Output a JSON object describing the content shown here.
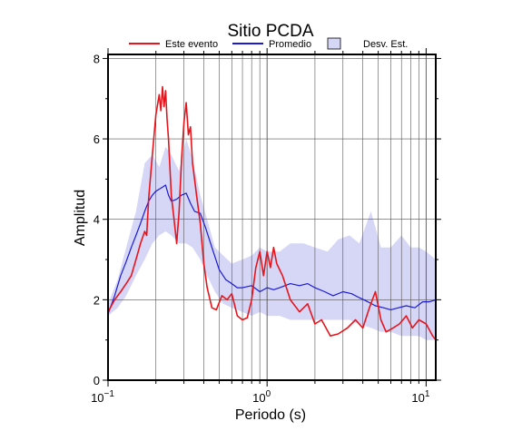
{
  "chart_data": {
    "type": "line",
    "title": "Sitio PCDA",
    "xlabel": "Periodo (s)",
    "ylabel": "Amplitud",
    "xscale": "log",
    "xlim": [
      0.1,
      11.5
    ],
    "ylim": [
      0,
      8.1
    ],
    "x_ticks": [
      {
        "base": "10",
        "exp": "−1"
      },
      {
        "base": "10",
        "exp": "0"
      },
      {
        "base": "10",
        "exp": "1"
      }
    ],
    "y_ticks": [
      "0",
      "2",
      "4",
      "6",
      "8"
    ],
    "grid": true,
    "legend_position": "top",
    "legend": [
      {
        "label": "Este evento",
        "kind": "line",
        "color": "#e8141c"
      },
      {
        "label": "Promedio",
        "kind": "line",
        "color": "#1a1ad6"
      },
      {
        "label": "Desv. Est.",
        "kind": "box",
        "color": "#d6d6f7"
      }
    ],
    "band": {
      "name": "Desv. Est.",
      "x": [
        0.1,
        0.115,
        0.13,
        0.15,
        0.17,
        0.19,
        0.21,
        0.23,
        0.25,
        0.28,
        0.31,
        0.34,
        0.38,
        0.42,
        0.47,
        0.53,
        0.6,
        0.7,
        0.8,
        0.9,
        1.0,
        1.2,
        1.4,
        1.7,
        2.0,
        2.4,
        2.8,
        3.3,
        3.8,
        4.5,
        5.2,
        6.0,
        7.0,
        8.0,
        9.0,
        10.0,
        11.5
      ],
      "lower": [
        1.6,
        1.8,
        2.1,
        2.6,
        3.0,
        3.4,
        3.6,
        3.7,
        3.6,
        3.4,
        3.4,
        3.3,
        3.0,
        2.6,
        2.2,
        1.9,
        1.8,
        1.7,
        1.6,
        1.7,
        1.6,
        1.6,
        1.5,
        1.5,
        1.5,
        1.5,
        1.5,
        1.5,
        1.4,
        1.3,
        1.2,
        1.2,
        1.1,
        1.1,
        1.1,
        1.0,
        1.0
      ],
      "upper": [
        1.9,
        2.5,
        3.3,
        4.2,
        5.4,
        5.6,
        5.3,
        5.8,
        5.6,
        5.2,
        6.0,
        5.5,
        4.6,
        4.0,
        3.3,
        3.1,
        2.9,
        3.0,
        3.1,
        3.3,
        3.2,
        3.2,
        3.4,
        3.4,
        3.3,
        3.2,
        3.5,
        3.6,
        3.4,
        4.2,
        3.3,
        3.3,
        3.6,
        3.3,
        3.3,
        3.2,
        3.0
      ]
    },
    "series": [
      {
        "name": "Promedio",
        "color": "#1a1ad6",
        "x": [
          0.1,
          0.11,
          0.12,
          0.13,
          0.14,
          0.15,
          0.16,
          0.17,
          0.18,
          0.19,
          0.2,
          0.21,
          0.22,
          0.23,
          0.24,
          0.25,
          0.27,
          0.29,
          0.31,
          0.33,
          0.35,
          0.38,
          0.41,
          0.45,
          0.5,
          0.55,
          0.6,
          0.65,
          0.7,
          0.8,
          0.9,
          1.0,
          1.1,
          1.2,
          1.4,
          1.6,
          1.8,
          2.0,
          2.3,
          2.6,
          3.0,
          3.4,
          3.8,
          4.3,
          4.8,
          5.4,
          6.0,
          6.7,
          7.5,
          8.5,
          9.5,
          10.5,
          11.5
        ],
        "y": [
          1.65,
          2.1,
          2.6,
          2.95,
          3.3,
          3.6,
          3.9,
          4.2,
          4.45,
          4.6,
          4.7,
          4.75,
          4.8,
          4.85,
          4.6,
          4.45,
          4.5,
          4.6,
          4.65,
          4.4,
          4.2,
          4.15,
          3.8,
          3.3,
          2.75,
          2.5,
          2.4,
          2.3,
          2.3,
          2.35,
          2.2,
          2.3,
          2.25,
          2.3,
          2.4,
          2.35,
          2.4,
          2.3,
          2.2,
          2.1,
          2.2,
          2.15,
          2.05,
          1.95,
          1.85,
          1.8,
          1.75,
          1.8,
          1.85,
          1.8,
          1.95,
          1.95,
          2.0
        ]
      },
      {
        "name": "Este evento",
        "color": "#e8141c",
        "x": [
          0.1,
          0.11,
          0.12,
          0.13,
          0.14,
          0.15,
          0.16,
          0.17,
          0.175,
          0.18,
          0.19,
          0.2,
          0.21,
          0.215,
          0.22,
          0.225,
          0.23,
          0.235,
          0.24,
          0.25,
          0.26,
          0.27,
          0.28,
          0.29,
          0.3,
          0.31,
          0.32,
          0.33,
          0.34,
          0.36,
          0.38,
          0.4,
          0.42,
          0.45,
          0.48,
          0.52,
          0.56,
          0.6,
          0.65,
          0.7,
          0.75,
          0.8,
          0.85,
          0.9,
          0.95,
          1.0,
          1.05,
          1.1,
          1.15,
          1.25,
          1.4,
          1.6,
          1.8,
          2.0,
          2.2,
          2.5,
          2.8,
          3.2,
          3.6,
          4.0,
          4.4,
          4.8,
          5.2,
          5.6,
          6.2,
          6.8,
          7.5,
          8.2,
          9.0,
          10.0,
          11.0,
          11.5
        ],
        "y": [
          1.7,
          2.0,
          2.2,
          2.4,
          2.6,
          3.0,
          3.4,
          3.7,
          3.6,
          4.5,
          5.6,
          6.6,
          7.1,
          6.7,
          7.3,
          6.8,
          7.2,
          6.5,
          6.0,
          4.6,
          4.0,
          3.4,
          4.2,
          5.5,
          6.4,
          6.9,
          6.1,
          6.3,
          5.4,
          4.6,
          3.9,
          2.9,
          2.3,
          1.8,
          1.75,
          2.1,
          2.0,
          2.15,
          1.6,
          1.5,
          1.55,
          2.0,
          2.8,
          3.2,
          2.6,
          3.2,
          2.8,
          3.3,
          2.9,
          2.6,
          2.0,
          1.7,
          1.9,
          1.4,
          1.5,
          1.1,
          1.15,
          1.3,
          1.5,
          1.3,
          1.8,
          2.2,
          1.5,
          1.2,
          1.3,
          1.4,
          1.6,
          1.3,
          1.5,
          1.4,
          1.1,
          1.0
        ]
      }
    ]
  }
}
